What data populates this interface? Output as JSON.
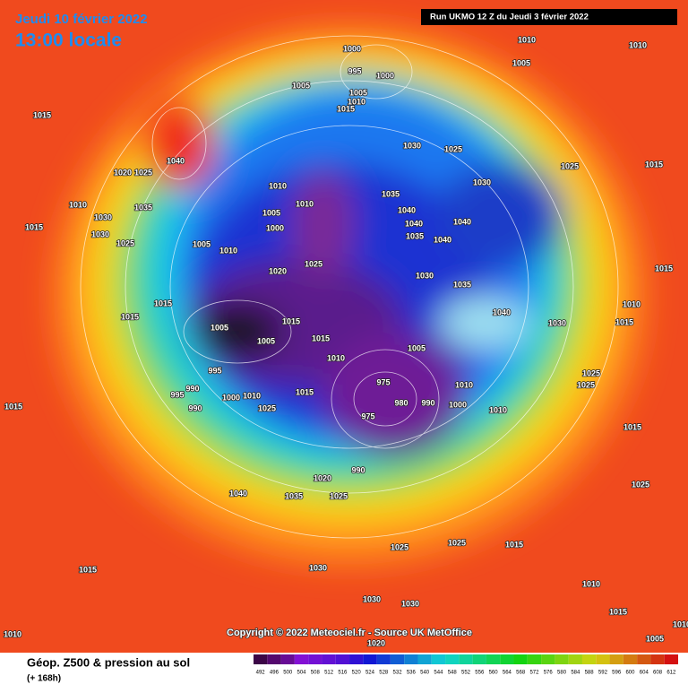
{
  "header": {
    "date": "Jeudi 10 février 2022",
    "time": "13:00 locale",
    "run": "Run UKMO 12 Z du Jeudi 3 février 2022"
  },
  "copyright": "Copyright © 2022 Meteociel.fr - Source UK MetOffice",
  "legend": {
    "title": "Géop. Z500 & pression au sol",
    "lead": "(+ 168h)",
    "ticks": [
      492,
      496,
      500,
      504,
      508,
      512,
      516,
      520,
      524,
      528,
      532,
      536,
      540,
      544,
      548,
      552,
      556,
      560,
      564,
      568,
      572,
      576,
      580,
      584,
      588,
      592,
      596,
      600,
      604,
      608,
      612
    ]
  },
  "isobar_labels": [
    1000,
    995,
    1000,
    1005,
    1010,
    1015,
    1005,
    1010,
    1010,
    1005,
    1015,
    1040,
    1025,
    1020,
    1035,
    1010,
    1030,
    1030,
    1025,
    1015,
    1030,
    1025,
    1030,
    1025,
    1015,
    1010,
    1010,
    1005,
    1000,
    1010,
    1005,
    1025,
    1020,
    1035,
    1040,
    1040,
    1035,
    1040,
    1040,
    1030,
    1035,
    1040,
    1030,
    1015,
    1015,
    1005,
    1005,
    1015,
    1015,
    1005,
    1010,
    995,
    990,
    995,
    990,
    1000,
    1010,
    1025,
    1015,
    975,
    980,
    975,
    990,
    1000,
    1010,
    1010,
    1025,
    1025,
    1015,
    1015,
    1010,
    1015,
    1015,
    990,
    1020,
    1025,
    1035,
    1040,
    1025,
    1015,
    1025,
    1025,
    1015,
    1030,
    1010,
    1030,
    1030,
    1010,
    1015,
    1020,
    1005,
    1010
  ]
}
